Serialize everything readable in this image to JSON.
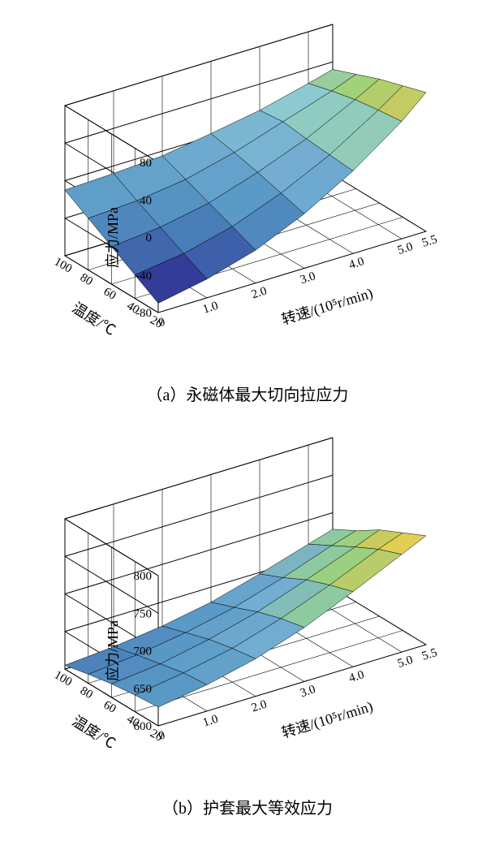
{
  "figure_a": {
    "type": "surface3d",
    "caption": "（a）永磁体最大切向拉应力",
    "z_label": "应力/MPa",
    "x_label": "温度/℃",
    "y_label": "转速/(10⁵r/min)",
    "z_ticks": [
      -80,
      -40,
      0,
      40,
      80
    ],
    "x_ticks": [
      100,
      80,
      60,
      40,
      20
    ],
    "y_ticks": [
      0,
      "1.0",
      "2.0",
      "3.0",
      "4.0",
      "5.0",
      "5.5"
    ],
    "z_range": [
      -80,
      80
    ],
    "x_range": [
      20,
      100
    ],
    "y_range": [
      0,
      5.5
    ],
    "label_fontsize": 18,
    "tick_fontsize": 15,
    "background_color": "#ffffff",
    "grid_color": "#000000",
    "axis_color": "#000000",
    "surface_grid_color": "#000000",
    "surface_grid_width": 0.5,
    "temp_values": [
      20,
      40,
      60,
      80,
      100
    ],
    "speed_values": [
      0,
      1.0,
      2.0,
      3.0,
      4.0,
      5.0,
      5.5
    ],
    "z_values": [
      [
        -70,
        -60,
        -45,
        -22,
        8,
        45,
        68
      ],
      [
        -55,
        -48,
        -35,
        -15,
        10,
        42,
        60
      ],
      [
        -40,
        -35,
        -25,
        -8,
        12,
        38,
        52
      ],
      [
        -25,
        -22,
        -15,
        -2,
        15,
        32,
        42
      ],
      [
        -10,
        -8,
        -5,
        3,
        12,
        25,
        32
      ]
    ],
    "colormap": [
      {
        "val": -80,
        "color": "#2a2d7a"
      },
      {
        "val": -60,
        "color": "#313695"
      },
      {
        "val": -40,
        "color": "#4575b4"
      },
      {
        "val": -20,
        "color": "#5a9bc7"
      },
      {
        "val": 0,
        "color": "#74add1"
      },
      {
        "val": 20,
        "color": "#8cc9d4"
      },
      {
        "val": 40,
        "color": "#9ed17a"
      },
      {
        "val": 60,
        "color": "#d4c857"
      },
      {
        "val": 80,
        "color": "#f9b641"
      }
    ]
  },
  "figure_b": {
    "type": "surface3d",
    "caption": "（b）护套最大等效应力",
    "z_label": "应力/MPa",
    "x_label": "温度/℃",
    "y_label": "转速/(10⁵r/min)",
    "z_ticks": [
      600,
      650,
      700,
      750,
      800
    ],
    "x_ticks": [
      100,
      80,
      60,
      40,
      20
    ],
    "y_ticks": [
      0,
      "1.0",
      "2.0",
      "3.0",
      "4.0",
      "5.0",
      "5.5"
    ],
    "z_range": [
      600,
      800
    ],
    "x_range": [
      20,
      100
    ],
    "y_range": [
      0,
      5.5
    ],
    "label_fontsize": 18,
    "tick_fontsize": 15,
    "background_color": "#ffffff",
    "grid_color": "#000000",
    "axis_color": "#000000",
    "surface_grid_color": "#000000",
    "surface_grid_width": 0.5,
    "temp_values": [
      20,
      40,
      60,
      80,
      100
    ],
    "speed_values": [
      0,
      1.0,
      2.0,
      3.0,
      4.0,
      5.0,
      5.5
    ],
    "z_values": [
      [
        625,
        635,
        650,
        672,
        700,
        730,
        745
      ],
      [
        622,
        632,
        645,
        665,
        690,
        718,
        730
      ],
      [
        618,
        625,
        638,
        655,
        678,
        702,
        715
      ],
      [
        612,
        618,
        628,
        642,
        662,
        685,
        695
      ],
      [
        605,
        610,
        618,
        630,
        648,
        668,
        678
      ]
    ],
    "colormap": [
      {
        "val": 600,
        "color": "#4575b4"
      },
      {
        "val": 630,
        "color": "#5a9bc7"
      },
      {
        "val": 660,
        "color": "#74add1"
      },
      {
        "val": 680,
        "color": "#8cc9a4"
      },
      {
        "val": 700,
        "color": "#9ed17a"
      },
      {
        "val": 720,
        "color": "#d4c857"
      },
      {
        "val": 745,
        "color": "#f2d94d"
      }
    ]
  }
}
